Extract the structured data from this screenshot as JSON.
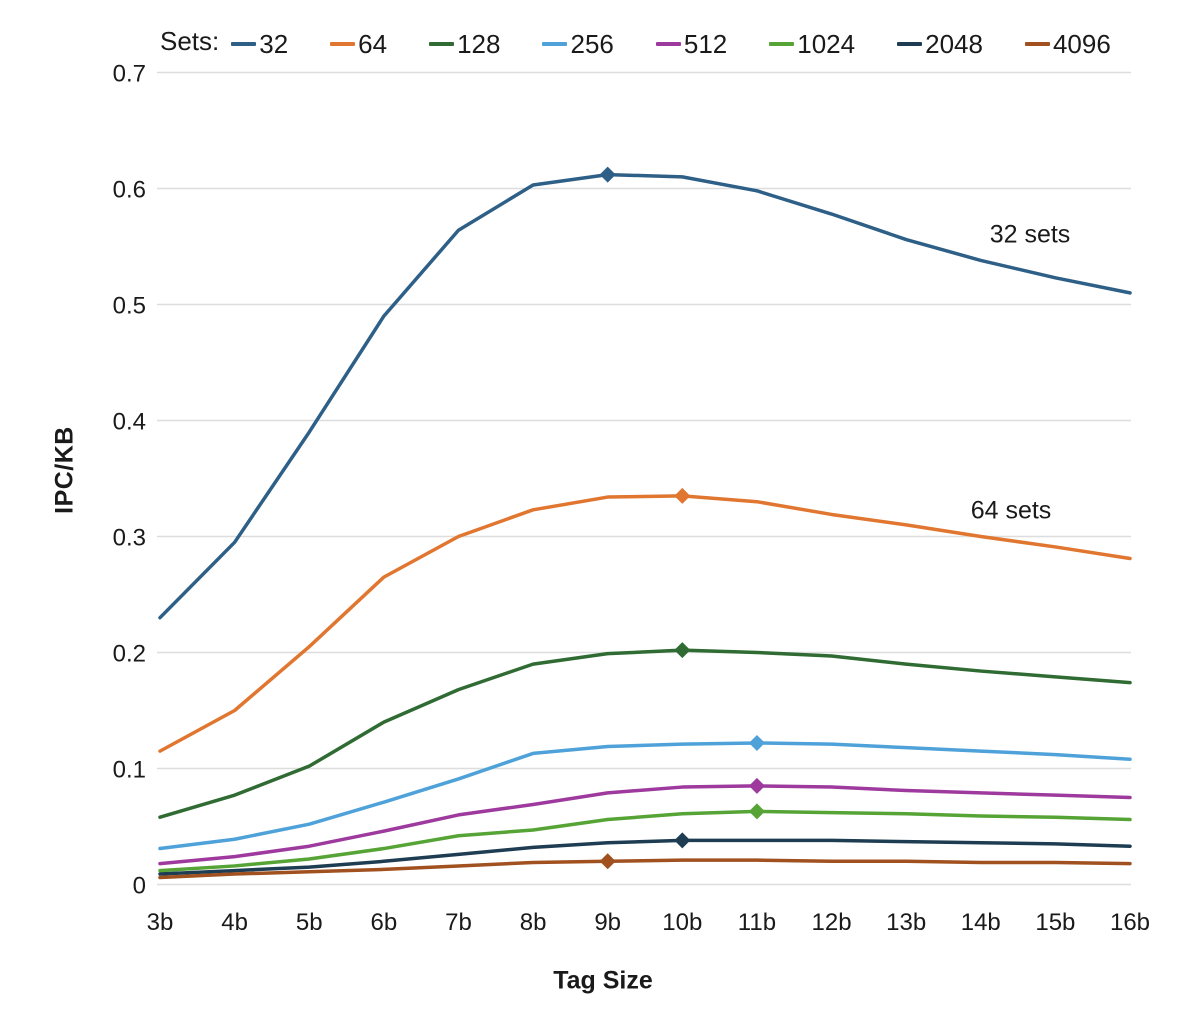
{
  "chart_data": {
    "type": "line",
    "title": "",
    "xlabel": "Tag Size",
    "ylabel": "IPC/KB",
    "ylim": [
      0,
      0.7
    ],
    "grid": "horizontal",
    "legend_title": "Sets:",
    "legend_position": "top",
    "x_categories": [
      "3b",
      "4b",
      "5b",
      "6b",
      "7b",
      "8b",
      "9b",
      "10b",
      "11b",
      "12b",
      "13b",
      "14b",
      "15b",
      "16b"
    ],
    "yticks": [
      {
        "value": 0.0,
        "label": "0"
      },
      {
        "value": 0.1,
        "label": "0.1"
      },
      {
        "value": 0.2,
        "label": "0.2"
      },
      {
        "value": 0.3,
        "label": "0.3"
      },
      {
        "value": 0.4,
        "label": "0.4"
      },
      {
        "value": 0.5,
        "label": "0.5"
      },
      {
        "value": 0.6,
        "label": "0.6"
      },
      {
        "value": 0.7,
        "label": "0.7"
      }
    ],
    "series": [
      {
        "name": "32",
        "color": "#2e5f87",
        "marker_at": "9b",
        "values": [
          0.23,
          0.295,
          0.39,
          0.49,
          0.564,
          0.603,
          0.612,
          0.61,
          0.598,
          0.578,
          0.556,
          0.538,
          0.523,
          0.51
        ]
      },
      {
        "name": "64",
        "color": "#e0762f",
        "marker_at": "10b",
        "values": [
          0.115,
          0.15,
          0.205,
          0.265,
          0.3,
          0.323,
          0.334,
          0.335,
          0.33,
          0.319,
          0.31,
          0.3,
          0.291,
          0.281
        ]
      },
      {
        "name": "128",
        "color": "#2f6b33",
        "marker_at": "10b",
        "values": [
          0.058,
          0.077,
          0.102,
          0.14,
          0.168,
          0.19,
          0.199,
          0.202,
          0.2,
          0.197,
          0.19,
          0.184,
          0.179,
          0.174
        ]
      },
      {
        "name": "256",
        "color": "#4ea2d9",
        "marker_at": "11b",
        "values": [
          0.031,
          0.039,
          0.052,
          0.071,
          0.091,
          0.113,
          0.119,
          0.121,
          0.122,
          0.121,
          0.118,
          0.115,
          0.112,
          0.108
        ]
      },
      {
        "name": "512",
        "color": "#9e3a9e",
        "marker_at": "11b",
        "values": [
          0.018,
          0.024,
          0.033,
          0.046,
          0.06,
          0.069,
          0.079,
          0.084,
          0.085,
          0.084,
          0.081,
          0.079,
          0.077,
          0.075
        ]
      },
      {
        "name": "1024",
        "color": "#56a436",
        "marker_at": "11b",
        "values": [
          0.012,
          0.016,
          0.022,
          0.031,
          0.042,
          0.047,
          0.056,
          0.061,
          0.063,
          0.062,
          0.061,
          0.059,
          0.058,
          0.056
        ]
      },
      {
        "name": "2048",
        "color": "#1e3d52",
        "marker_at": "10b",
        "values": [
          0.009,
          0.012,
          0.015,
          0.02,
          0.026,
          0.032,
          0.036,
          0.038,
          0.038,
          0.038,
          0.037,
          0.036,
          0.035,
          0.033
        ]
      },
      {
        "name": "4096",
        "color": "#a0511f",
        "marker_at": "9b",
        "values": [
          0.006,
          0.009,
          0.011,
          0.013,
          0.016,
          0.019,
          0.02,
          0.021,
          0.021,
          0.02,
          0.02,
          0.019,
          0.019,
          0.018
        ]
      }
    ],
    "annotations": [
      {
        "text": "32 sets"
      },
      {
        "text": "64 sets"
      }
    ],
    "colors": {
      "grid": "#dddddd",
      "text": "#1a1a1a"
    }
  }
}
